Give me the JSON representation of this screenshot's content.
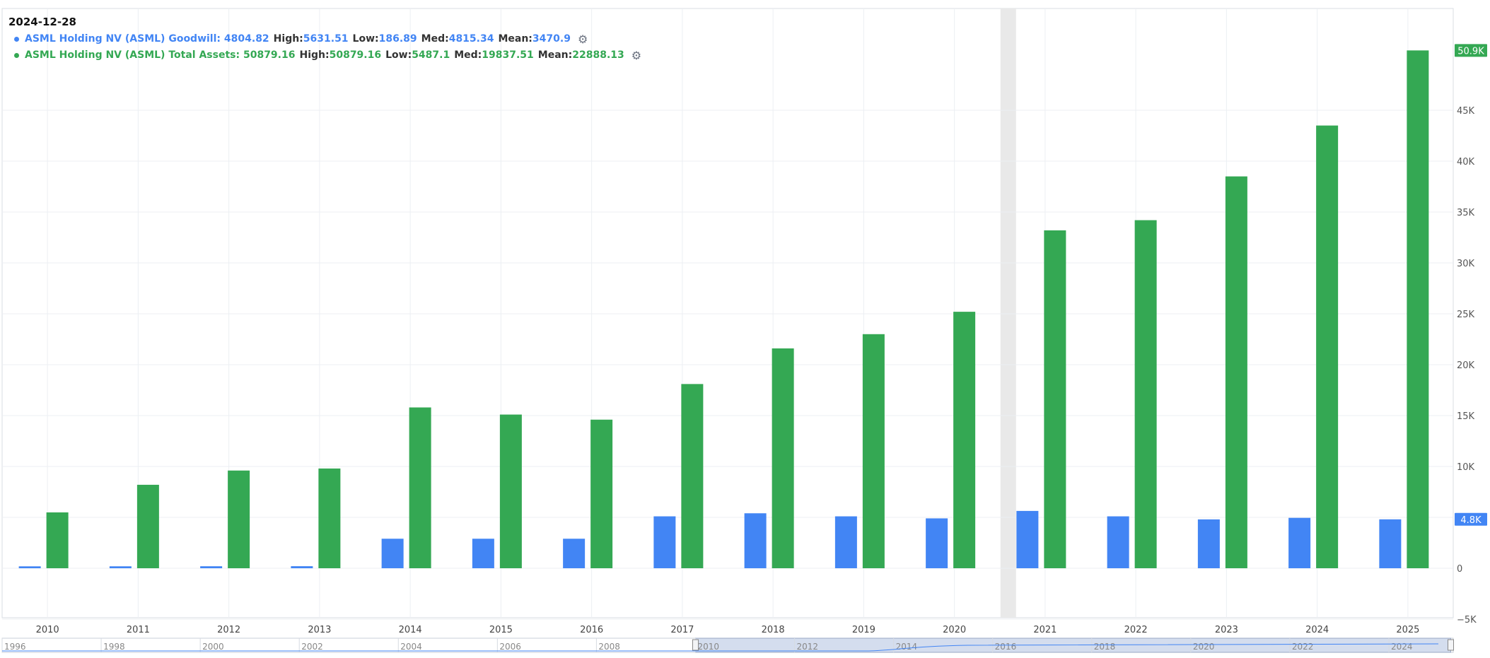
{
  "header": {
    "date": "2024-12-28"
  },
  "legend": [
    {
      "name": "ASML Holding NV (ASML) Goodwill",
      "value": "4804.82",
      "high": "5631.51",
      "low": "186.89",
      "med": "4815.34",
      "mean": "3470.9",
      "color": "#4285f4",
      "icon": "gear-icon"
    },
    {
      "name": "ASML Holding NV (ASML) Total Assets",
      "value": "50879.16",
      "high": "50879.16",
      "low": "5487.1",
      "med": "19837.51",
      "mean": "22888.13",
      "color": "#34a853",
      "icon": "gear-icon"
    }
  ],
  "labels": {
    "high": "High:",
    "low": "Low:",
    "med": "Med:",
    "mean": "Mean:"
  },
  "chart_data": {
    "type": "bar",
    "categories": [
      "2010",
      "2011",
      "2012",
      "2013",
      "2014",
      "2015",
      "2016",
      "2017",
      "2018",
      "2019",
      "2020",
      "2021",
      "2022",
      "2023",
      "2024",
      "2025"
    ],
    "series": [
      {
        "name": "ASML Holding NV (ASML) Goodwill",
        "color": "#4285f4",
        "values": [
          187,
          190,
          195,
          200,
          2900,
          2900,
          2900,
          5100,
          5400,
          5100,
          4900,
          5631.51,
          5100,
          4800,
          4950,
          4804.82
        ]
      },
      {
        "name": "ASML Holding NV (ASML) Total Assets",
        "color": "#34a853",
        "values": [
          5487.1,
          8200,
          9600,
          9800,
          15800,
          15100,
          14600,
          18100,
          21600,
          23000,
          25200,
          33200,
          34200,
          38500,
          43500,
          50879.16
        ]
      }
    ],
    "ylim": [
      -5000,
      55000
    ],
    "yticks": [
      -5000,
      0,
      5000,
      10000,
      15000,
      20000,
      25000,
      30000,
      35000,
      40000,
      45000
    ],
    "ytick_labels": [
      "−5K",
      "0",
      "5K",
      "10K",
      "15K",
      "20K",
      "25K",
      "30K",
      "35K",
      "40K",
      "45K"
    ],
    "value_tags": [
      {
        "series": 1,
        "value": 50879.16,
        "label": "50.9K",
        "color": "#34a853"
      },
      {
        "series": 0,
        "value": 4804.82,
        "label": "4.8K",
        "color": "#4285f4"
      }
    ],
    "grid": true,
    "crosshair_category": "2020",
    "navigator": {
      "labels": [
        "1996",
        "1998",
        "2000",
        "2002",
        "2004",
        "2006",
        "2008",
        "2010",
        "2012",
        "2014",
        "2016",
        "2018",
        "2020",
        "2022",
        "2024"
      ],
      "selected_range": [
        "2010",
        "2025"
      ]
    }
  }
}
